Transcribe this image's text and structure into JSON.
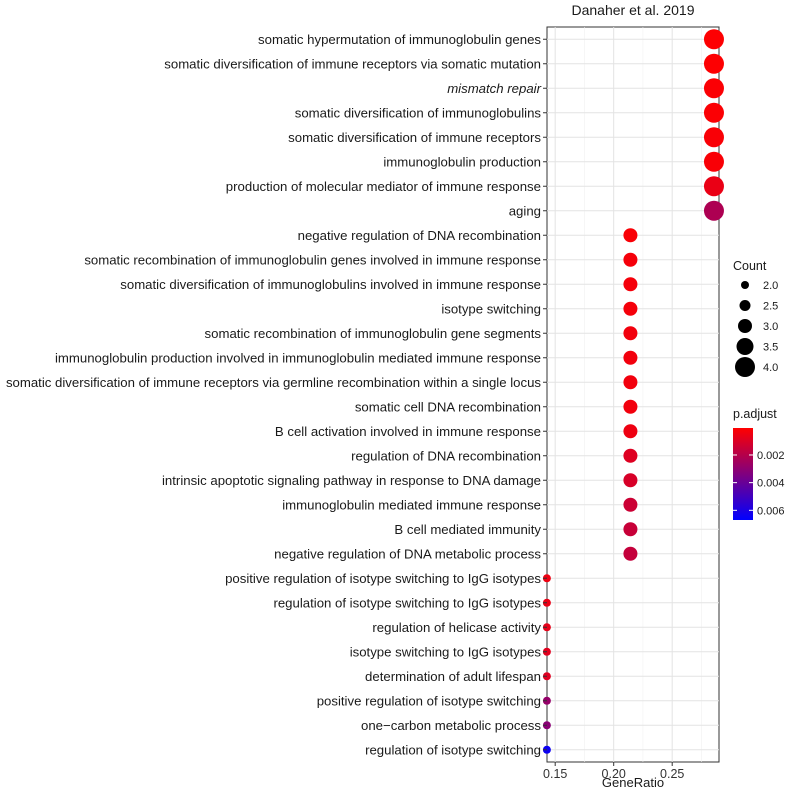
{
  "chart_data": {
    "type": "scatter",
    "title": "Danaher et al. 2019",
    "xlabel": "GeneRatio",
    "ylabel": "",
    "xlim": [
      0.143,
      0.29
    ],
    "x_ticks": [
      0.15,
      0.2,
      0.25
    ],
    "x_tick_labels": [
      "0.15",
      "0.20",
      "0.25"
    ],
    "grid": true,
    "legend_position": "right",
    "points": [
      {
        "label": "somatic hypermutation of immunoglobulin genes",
        "x": 0.2857,
        "count": 4,
        "p_adjust": 0.0001,
        "italic": false
      },
      {
        "label": "somatic diversification of immune receptors via somatic mutation",
        "x": 0.2857,
        "count": 4,
        "p_adjust": 0.0001,
        "italic": false
      },
      {
        "label": "mismatch repair",
        "x": 0.2857,
        "count": 4,
        "p_adjust": 0.00015,
        "italic": true
      },
      {
        "label": "somatic diversification of immunoglobulins",
        "x": 0.2857,
        "count": 4,
        "p_adjust": 0.00015,
        "italic": false
      },
      {
        "label": "somatic diversification of immune receptors",
        "x": 0.2857,
        "count": 4,
        "p_adjust": 0.0002,
        "italic": false
      },
      {
        "label": "immunoglobulin production",
        "x": 0.2857,
        "count": 4,
        "p_adjust": 0.0002,
        "italic": false
      },
      {
        "label": "production of molecular mediator of immune response",
        "x": 0.2857,
        "count": 4,
        "p_adjust": 0.0006,
        "italic": false
      },
      {
        "label": "aging",
        "x": 0.2857,
        "count": 4,
        "p_adjust": 0.0022,
        "italic": false
      },
      {
        "label": "negative regulation of DNA recombination",
        "x": 0.2143,
        "count": 3,
        "p_adjust": 0.0002,
        "italic": false
      },
      {
        "label": "somatic recombination of immunoglobulin genes involved in immune response",
        "x": 0.2143,
        "count": 3,
        "p_adjust": 0.0003,
        "italic": false
      },
      {
        "label": "somatic diversification of immunoglobulins involved in immune response",
        "x": 0.2143,
        "count": 3,
        "p_adjust": 0.0003,
        "italic": false
      },
      {
        "label": "isotype switching",
        "x": 0.2143,
        "count": 3,
        "p_adjust": 0.0003,
        "italic": false
      },
      {
        "label": "somatic recombination of immunoglobulin gene segments",
        "x": 0.2143,
        "count": 3,
        "p_adjust": 0.0004,
        "italic": false
      },
      {
        "label": "immunoglobulin production involved in immunoglobulin mediated immune response",
        "x": 0.2143,
        "count": 3,
        "p_adjust": 0.0004,
        "italic": false
      },
      {
        "label": "somatic diversification of immune receptors via germline recombination within a single locus",
        "x": 0.2143,
        "count": 3,
        "p_adjust": 0.0004,
        "italic": false
      },
      {
        "label": "somatic cell DNA recombination",
        "x": 0.2143,
        "count": 3,
        "p_adjust": 0.0004,
        "italic": false
      },
      {
        "label": "B cell activation involved in immune response",
        "x": 0.2143,
        "count": 3,
        "p_adjust": 0.0005,
        "italic": false
      },
      {
        "label": "regulation of DNA recombination",
        "x": 0.2143,
        "count": 3,
        "p_adjust": 0.0009,
        "italic": false
      },
      {
        "label": "intrinsic apoptotic signaling pathway in response to DNA damage",
        "x": 0.2143,
        "count": 3,
        "p_adjust": 0.0011,
        "italic": false
      },
      {
        "label": "immunoglobulin mediated immune response",
        "x": 0.2143,
        "count": 3,
        "p_adjust": 0.0014,
        "italic": false
      },
      {
        "label": "B cell mediated immunity",
        "x": 0.2143,
        "count": 3,
        "p_adjust": 0.0015,
        "italic": false
      },
      {
        "label": "negative regulation of DNA metabolic process",
        "x": 0.2143,
        "count": 3,
        "p_adjust": 0.0016,
        "italic": false
      },
      {
        "label": "positive regulation of isotype switching to IgG isotypes",
        "x": 0.1429,
        "count": 2,
        "p_adjust": 0.0005,
        "italic": false
      },
      {
        "label": "regulation of isotype switching to IgG isotypes",
        "x": 0.1429,
        "count": 2,
        "p_adjust": 0.0006,
        "italic": false
      },
      {
        "label": "regulation of helicase activity",
        "x": 0.1429,
        "count": 2,
        "p_adjust": 0.0007,
        "italic": false
      },
      {
        "label": "isotype switching to IgG isotypes",
        "x": 0.1429,
        "count": 2,
        "p_adjust": 0.0008,
        "italic": false
      },
      {
        "label": "determination of adult lifespan",
        "x": 0.1429,
        "count": 2,
        "p_adjust": 0.0009,
        "italic": false
      },
      {
        "label": "positive regulation of isotype switching",
        "x": 0.1429,
        "count": 2,
        "p_adjust": 0.0028,
        "italic": false
      },
      {
        "label": "one−carbon metabolic process",
        "x": 0.1429,
        "count": 2,
        "p_adjust": 0.0031,
        "italic": false
      },
      {
        "label": "regulation of isotype switching",
        "x": 0.1429,
        "count": 2,
        "p_adjust": 0.0064,
        "italic": false
      }
    ],
    "size_legend": {
      "title": "Count",
      "values": [
        2.0,
        2.5,
        3.0,
        3.5,
        4.0
      ],
      "labels": [
        "2.0",
        "2.5",
        "3.0",
        "3.5",
        "4.0"
      ]
    },
    "color_legend": {
      "title": "p.adjust",
      "range": [
        5e-05,
        0.0067
      ],
      "ticks": [
        0.002,
        0.004,
        0.006
      ],
      "tick_labels": [
        "0.002",
        "0.004",
        "0.006"
      ],
      "low_color": "#ff0000",
      "high_color": "#0000ff"
    }
  }
}
